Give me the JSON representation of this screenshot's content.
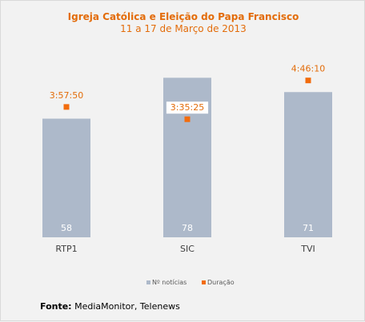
{
  "chart_data": {
    "type": "bar",
    "title": "Igreja Católica e Eleição do Papa Francisco",
    "subtitle": "11 a 17 de Março de 2013",
    "categories": [
      "RTP1",
      "SIC",
      "TVI"
    ],
    "series": [
      {
        "name": "Nº notícias",
        "type": "bar",
        "values": [
          58,
          78,
          71
        ],
        "color": "#adb9ca"
      },
      {
        "name": "Duração",
        "type": "scatter",
        "values": [
          14270,
          12925,
          17170
        ],
        "labels": [
          "3:57:50",
          "3:35:25",
          "4:46:10"
        ],
        "color": "#f26c0d"
      }
    ],
    "ylim": [
      0,
      100
    ],
    "y2lim": [
      0,
      22390
    ],
    "grid": false,
    "legend": "bottom"
  },
  "source": {
    "label": "Fonte:",
    "text": "MediaMonitor, Telenews"
  }
}
